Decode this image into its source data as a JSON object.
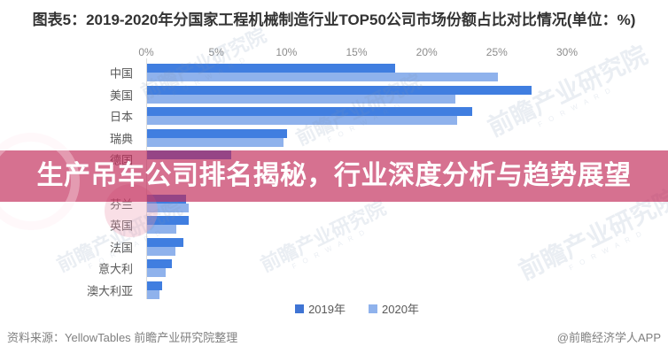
{
  "title": "图表5：2019-2020年分国家工程机械制造行业TOP50公司市场份额占比对比情况(单位：%)",
  "banner": {
    "text": "生产吊车公司排名揭秘，行业深度分析与趋势展望",
    "bg_color_rgba": "rgba(193,40,86,0.66)",
    "text_color": "#ffffff"
  },
  "watermark": {
    "text": "前瞻产业研究院",
    "subtext": "F O R W A R D"
  },
  "legend": {
    "items": [
      {
        "label": "2019年",
        "color": "#3f74d4"
      },
      {
        "label": "2020年",
        "color": "#8fb2ec"
      }
    ]
  },
  "footer": {
    "source": "资料来源：YellowTables 前瞻产业研究院整理",
    "credit": "@前瞻经济学人APP"
  },
  "chart_data": {
    "type": "bar",
    "orientation": "horizontal",
    "title": "2019-2020年分国家工程机械制造行业TOP50公司市场份额占比对比情况",
    "unit": "%",
    "xlim": [
      0,
      30
    ],
    "x_ticks": [
      "0%",
      "5%",
      "10%",
      "15%",
      "20%",
      "25%",
      "30%"
    ],
    "grid": false,
    "legend_position": "bottom-center",
    "categories": [
      "中国",
      "美国",
      "日本",
      "瑞典",
      "德国",
      "",
      "芬兰",
      "英国",
      "法国",
      "意大利",
      "澳大利亚"
    ],
    "series": [
      {
        "name": "2019年",
        "color": "#407ee0",
        "values": [
          17.7,
          27.4,
          23.2,
          10.0,
          6.0,
          null,
          2.8,
          3.0,
          2.6,
          1.8,
          1.1
        ]
      },
      {
        "name": "2020年",
        "color": "#8fb2ec",
        "values": [
          25.0,
          22.0,
          22.1,
          9.7,
          null,
          null,
          3.0,
          2.1,
          2.0,
          1.3,
          0.9
        ]
      }
    ],
    "obscured_rows_by_banner": [
      4,
      5
    ],
    "obscured_note": "第5行2020年条与第6行整行被标题横幅遮挡，数值不可见"
  }
}
